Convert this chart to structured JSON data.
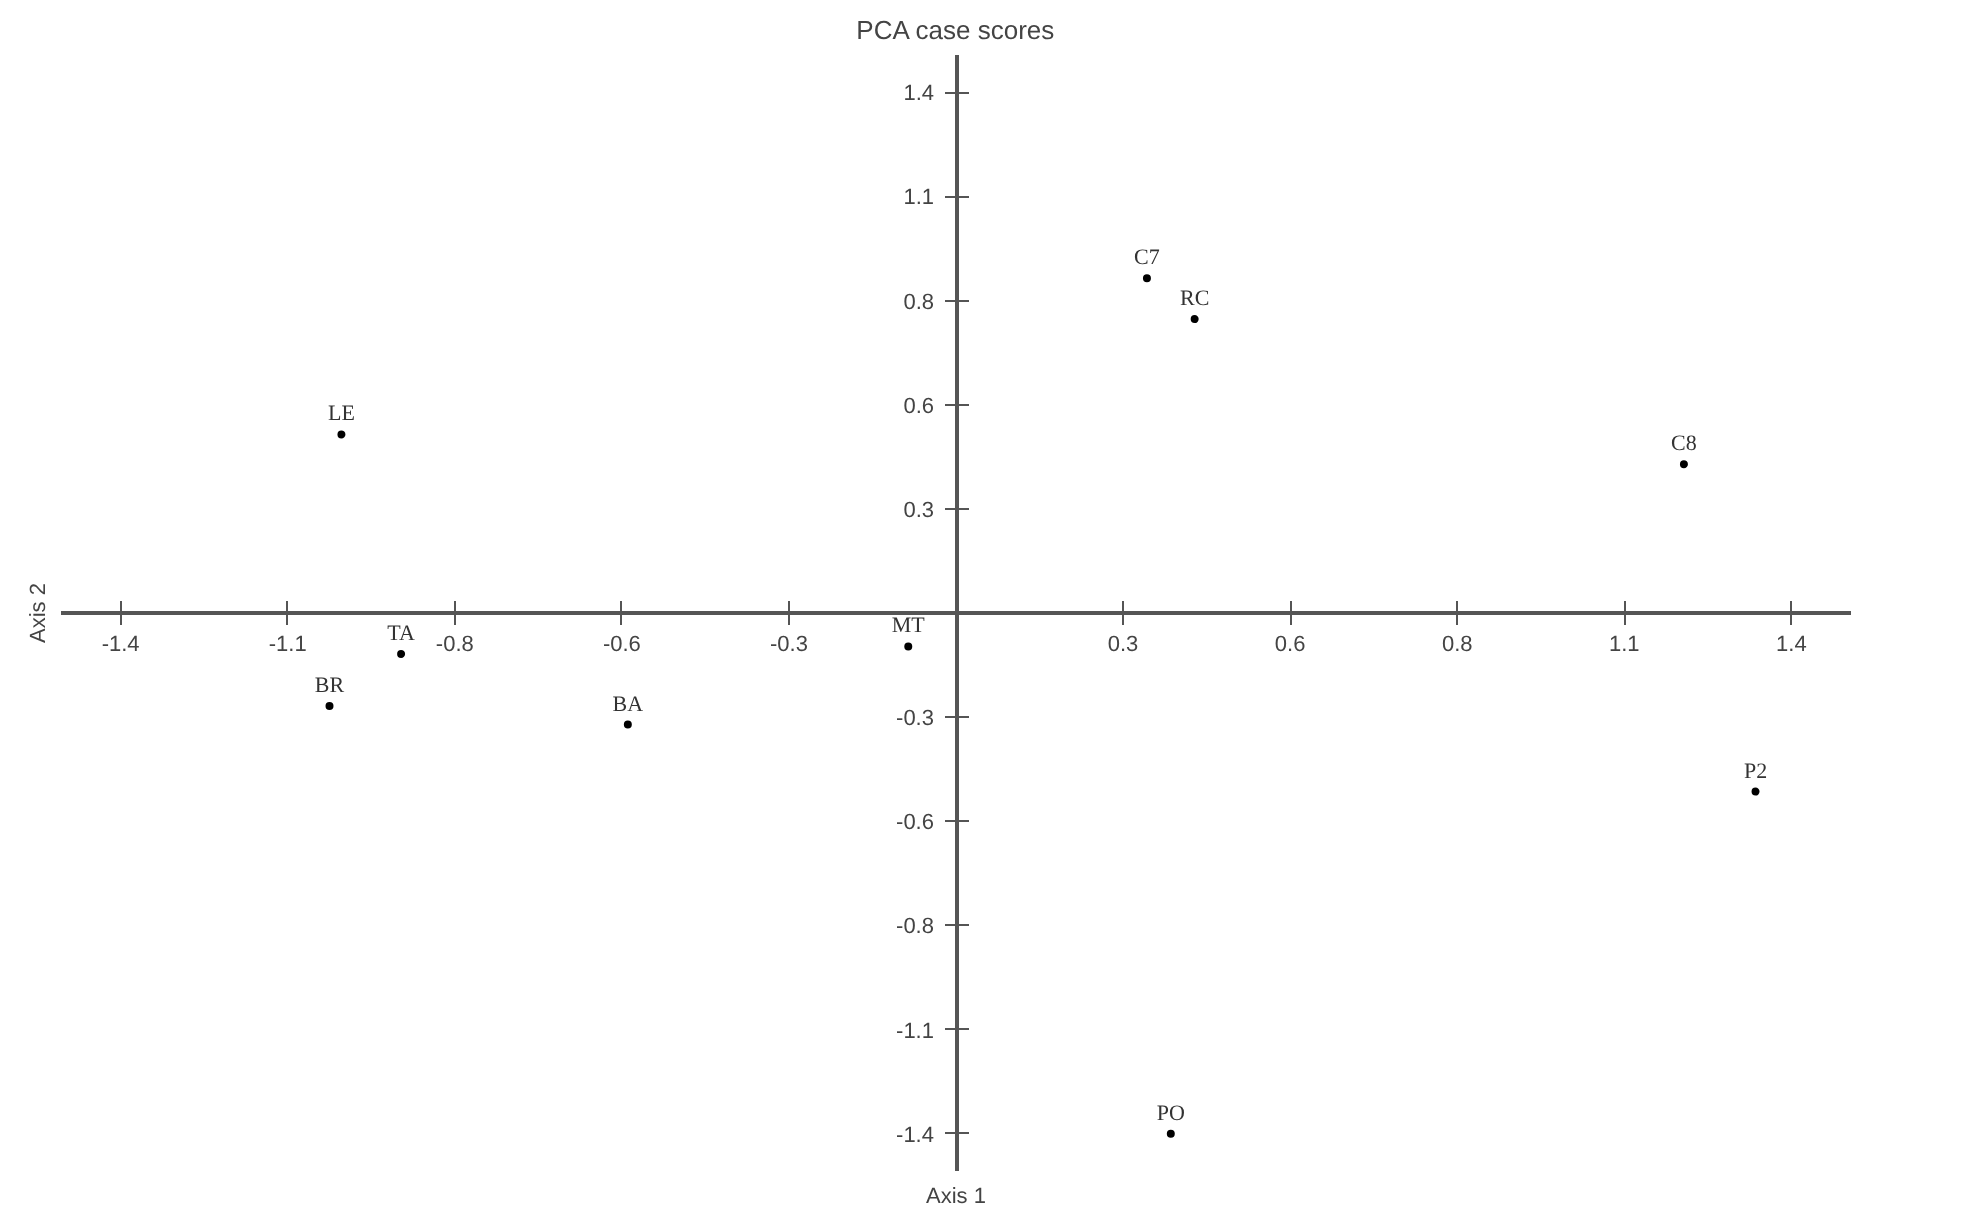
{
  "chart_data": {
    "type": "scatter",
    "title": "PCA case scores",
    "xlabel": "Axis 1",
    "ylabel": "Axis 2",
    "x": [
      -1.03,
      -0.93,
      -1.05,
      -0.55,
      -0.08,
      0.32,
      0.4,
      1.22,
      1.34,
      0.36
    ],
    "series": [
      {
        "color": "#000000",
        "values": [
          0.48,
          -0.11,
          -0.25,
          -0.3,
          -0.09,
          0.9,
          0.79,
          0.4,
          -0.48,
          -1.4
        ]
      }
    ],
    "annotations": [
      {
        "text": "LE",
        "x": -1.03,
        "y": 0.48
      },
      {
        "text": "TA",
        "x": -0.93,
        "y": -0.11
      },
      {
        "text": "BR",
        "x": -1.05,
        "y": -0.25
      },
      {
        "text": "BA",
        "x": -0.55,
        "y": -0.3
      },
      {
        "text": "MT",
        "x": -0.08,
        "y": -0.09
      },
      {
        "text": "C7",
        "x": 0.32,
        "y": 0.9
      },
      {
        "text": "RC",
        "x": 0.4,
        "y": 0.79
      },
      {
        "text": "C8",
        "x": 1.22,
        "y": 0.4
      },
      {
        "text": "P2",
        "x": 1.34,
        "y": -0.48
      },
      {
        "text": "PO",
        "x": 0.36,
        "y": -1.4
      }
    ],
    "xlim": [
      -1.5,
      1.5
    ],
    "ylim": [
      -1.5,
      1.5
    ],
    "xticks": [
      -1.4,
      {
        "value": -1.12,
        "label": "-1.1"
      },
      {
        "value": -0.84,
        "label": "-0.8"
      },
      {
        "value": -0.56,
        "label": "-0.6"
      },
      {
        "value": -0.28,
        "label": "-0.3"
      },
      {
        "value": 0.28,
        "label": "0.3"
      },
      {
        "value": 0.56,
        "label": "0.6"
      },
      {
        "value": 0.84,
        "label": "0.8"
      },
      {
        "value": 1.12,
        "label": "1.1"
      },
      1.4
    ],
    "yticks": [
      -1.4,
      {
        "value": -1.12,
        "label": "-1.1"
      },
      {
        "value": -0.84,
        "label": "-0.8"
      },
      {
        "value": -0.56,
        "label": "-0.6"
      },
      {
        "value": -0.28,
        "label": "-0.3"
      },
      {
        "value": 0.28,
        "label": "0.3"
      },
      {
        "value": 0.56,
        "label": "0.6"
      },
      {
        "value": 0.84,
        "label": "0.8"
      },
      {
        "value": 1.12,
        "label": "1.1"
      },
      1.4
    ],
    "grid": false,
    "marker": "circle"
  }
}
